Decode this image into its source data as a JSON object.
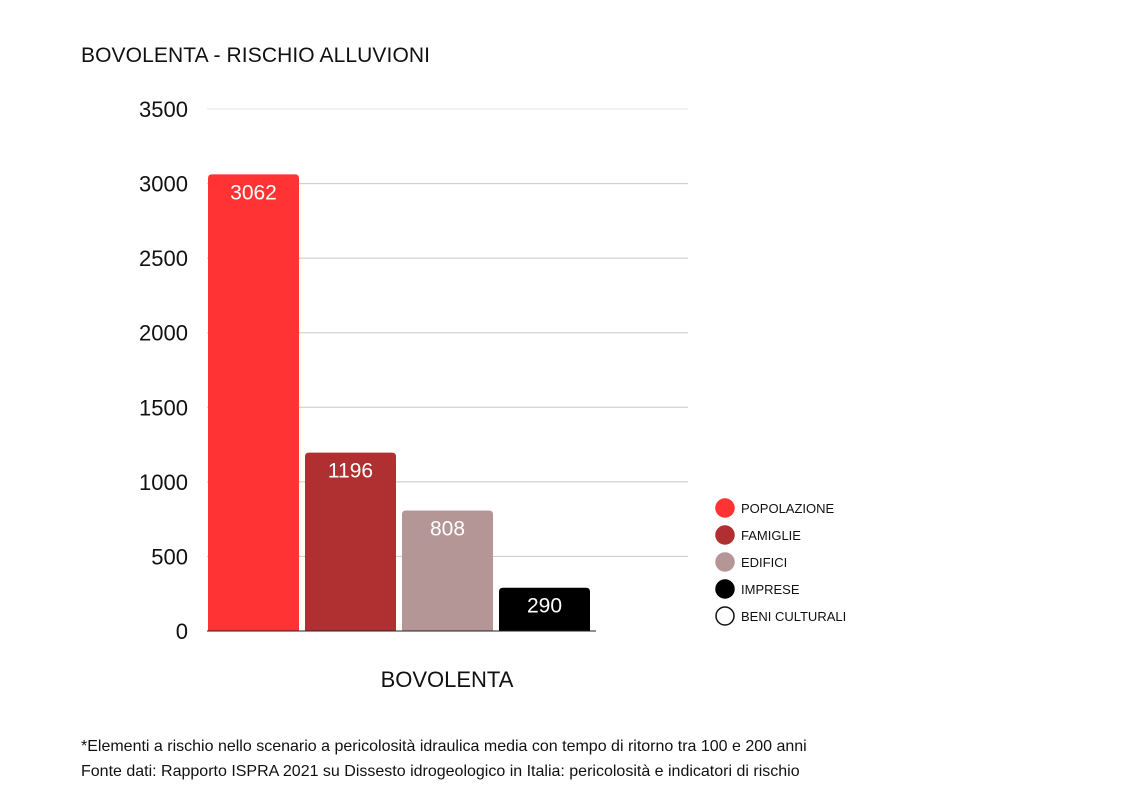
{
  "chart_data": {
    "type": "bar",
    "title": "BOVOLENTA - RISCHIO ALLUVIONI",
    "categories": [
      "BOVOLENTA"
    ],
    "xlabel": "BOVOLENTA",
    "ylabel": "",
    "ylim": [
      0,
      3500
    ],
    "yticks": [
      "0",
      "500",
      "1000",
      "1500",
      "2000",
      "2500",
      "3000",
      "3500"
    ],
    "grid": true,
    "legend_position": "right",
    "series": [
      {
        "name": "POPOLAZIONE",
        "values": [
          3062
        ],
        "label": "3062",
        "color": "#ff3333"
      },
      {
        "name": "FAMIGLIE",
        "values": [
          1196
        ],
        "label": "1196",
        "color": "#b03031"
      },
      {
        "name": "EDIFICI",
        "values": [
          808
        ],
        "label": "808",
        "color": "#b59696"
      },
      {
        "name": "IMPRESE",
        "values": [
          290
        ],
        "label": "290",
        "color": "#000000"
      },
      {
        "name": "BENI CULTURALI",
        "values": [
          0
        ],
        "label": "",
        "color": "#ffffff"
      }
    ]
  },
  "footnotes": {
    "line1": "*Elementi a rischio nello scenario a pericolosità idraulica media con tempo di ritorno tra 100 e 200 anni",
    "line2": "Fonte dati: Rapporto ISPRA 2021 su Dissesto idrogeologico in Italia: pericolosità e indicatori di rischio"
  }
}
